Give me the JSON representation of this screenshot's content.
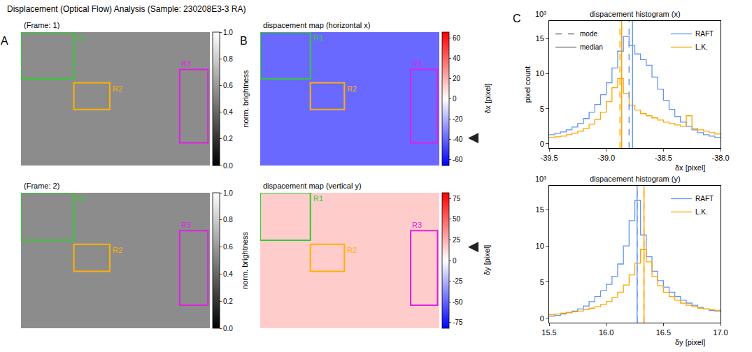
{
  "title": "Displacement (Optical Flow) Analysis (Sample: 230208E3-3 RA)",
  "chart_data": [
    {
      "type": "heatmap",
      "panel": "A",
      "title": "(Frame: 1)",
      "color": "gray",
      "cells": [
        [
          0.55
        ]
      ],
      "zlim": [
        0,
        1
      ],
      "zticks": [
        {
          "value": 0,
          "label": "0.0"
        },
        0.2,
        0.4,
        0.6,
        0.8,
        {
          "value": 1,
          "label": "1.0"
        }
      ],
      "colorbar_label": "norm. brightness",
      "tick_labels": false,
      "regions": [
        {
          "label": "R1",
          "color": "#33cc33",
          "x0": 0.0,
          "x1": 0.28,
          "y0": 0.0,
          "y1": 0.35
        },
        {
          "label": "R2",
          "color": "#ffb000",
          "x0": 0.28,
          "x1": 0.47,
          "y0": 0.38,
          "y1": 0.58
        },
        {
          "label": "R3",
          "color": "#e020e0",
          "x0": 0.84,
          "x1": 0.99,
          "y0": 0.28,
          "y1": 0.83
        }
      ]
    },
    {
      "type": "heatmap",
      "title": "(Frame: 2)",
      "color": "gray",
      "cells": [
        [
          0.55
        ]
      ],
      "zlim": [
        0,
        1
      ],
      "zticks": [
        {
          "value": 0,
          "label": "0.0"
        },
        0.2,
        0.4,
        0.6,
        0.8,
        {
          "value": 1,
          "label": "1.0"
        }
      ],
      "colorbar_label": "norm. brightness",
      "tick_labels": false,
      "regions": [
        {
          "label": "R1",
          "color": "#33cc33",
          "x0": 0.0,
          "x1": 0.28,
          "y0": 0.0,
          "y1": 0.35
        },
        {
          "label": "R2",
          "color": "#ffb000",
          "x0": 0.28,
          "x1": 0.47,
          "y0": 0.38,
          "y1": 0.58
        },
        {
          "label": "R3",
          "color": "#e020e0",
          "x0": 0.84,
          "x1": 0.99,
          "y0": 0.28,
          "y1": 0.83
        }
      ]
    },
    {
      "type": "heatmap",
      "panel": "B",
      "title": "dispacement map (horizontal x)",
      "color": "bwr",
      "cells": [
        [
          -38.8
        ]
      ],
      "zlim": [
        -66,
        66
      ],
      "zticks": [
        -60,
        -40,
        -20,
        0,
        20,
        40,
        60
      ],
      "colorbar_label": "δx [pixel]",
      "arrow_value": -38.8,
      "tick_labels": false,
      "regions": [
        {
          "label": "R1",
          "color": "#33cc33",
          "x0": 0.0,
          "x1": 0.28,
          "y0": 0.0,
          "y1": 0.35
        },
        {
          "label": "R2",
          "color": "#ffb000",
          "x0": 0.28,
          "x1": 0.47,
          "y0": 0.38,
          "y1": 0.58
        },
        {
          "label": "R3",
          "color": "#e020e0",
          "x0": 0.84,
          "x1": 0.99,
          "y0": 0.28,
          "y1": 0.83
        }
      ]
    },
    {
      "type": "heatmap",
      "title": "dispacement map (vertical y)",
      "color": "bwr",
      "cells": [
        [
          16.3
        ]
      ],
      "zlim": [
        -82,
        82
      ],
      "zticks": [
        -75,
        -50,
        -25,
        0,
        25,
        50,
        75
      ],
      "colorbar_label": "δy [pixel]",
      "arrow_value": 16.3,
      "tick_labels": false,
      "regions": [
        {
          "label": "R1",
          "color": "#33cc33",
          "x0": 0.0,
          "x1": 0.28,
          "y0": 0.0,
          "y1": 0.35
        },
        {
          "label": "R2",
          "color": "#ffb000",
          "x0": 0.28,
          "x1": 0.47,
          "y0": 0.38,
          "y1": 0.58
        },
        {
          "label": "R3",
          "color": "#e020e0",
          "x0": 0.84,
          "x1": 0.99,
          "y0": 0.28,
          "y1": 0.83
        }
      ]
    },
    {
      "type": "histogram",
      "panel": "C",
      "title": "dispacement histogram (x)",
      "x_label": "δx [pixel]",
      "y_label": "pixel count",
      "y_scale_label": "10³",
      "bins": [
        -39.5,
        -39.45,
        -39.4,
        -39.35,
        -39.3,
        -39.25,
        -39.2,
        -39.15,
        -39.1,
        -39.05,
        -39.0,
        -38.95,
        -38.9,
        -38.85,
        -38.8,
        -38.75,
        -38.7,
        -38.65,
        -38.6,
        -38.55,
        -38.5,
        -38.45,
        -38.4,
        -38.35,
        -38.3,
        -38.25,
        -38.2,
        -38.15,
        -38.1,
        -38.05,
        -38.0
      ],
      "series": [
        {
          "name": "RAFT",
          "color": "#6495ed",
          "mode": -38.8,
          "median": -38.77,
          "values": [
            1.3,
            1.5,
            1.7,
            2.0,
            2.4,
            2.9,
            3.6,
            4.5,
            5.6,
            7.0,
            8.7,
            10.8,
            13.2,
            15.3,
            14.0,
            12.8,
            12.0,
            11.2,
            9.5,
            7.8,
            6.2,
            4.9,
            3.9,
            3.1,
            2.5,
            2.0,
            1.6,
            1.3,
            1.1,
            0.9
          ]
        },
        {
          "name": "L.K.",
          "color": "#ffa500",
          "mode": -38.88,
          "median": -38.865,
          "values": [
            0.9,
            1.0,
            1.1,
            1.3,
            1.5,
            1.8,
            2.2,
            2.8,
            3.5,
            4.5,
            6.0,
            8.0,
            9.3,
            7.2,
            5.5,
            4.8,
            4.3,
            4.0,
            3.7,
            3.4,
            3.1,
            2.9,
            2.7,
            2.5,
            4.0,
            2.2,
            2.0,
            1.8,
            1.6,
            1.4
          ]
        }
      ],
      "reference_lines": [
        {
          "name": "mode",
          "color": "#777777",
          "line_style": "dash"
        },
        {
          "name": "median",
          "color": "#777777",
          "line_style": "solid"
        }
      ],
      "xlim": [
        -39.5,
        -38.0
      ],
      "xticks": [
        -39.5,
        {
          "value": -39.0,
          "label": "-39.0"
        },
        -38.5,
        {
          "value": -38.0,
          "label": "-38.0"
        }
      ],
      "ylim": [
        -0.6,
        17.5
      ],
      "yticks": [
        0,
        5,
        10,
        15
      ],
      "legend": "upper right",
      "grid": false
    },
    {
      "type": "histogram",
      "title": "dispacement histogram (y)",
      "x_label": "δy [pixel]",
      "y_scale_label": "10³",
      "bins": [
        15.5,
        15.55,
        15.6,
        15.65,
        15.7,
        15.75,
        15.8,
        15.85,
        15.9,
        15.95,
        16.0,
        16.05,
        16.1,
        16.15,
        16.2,
        16.25,
        16.3,
        16.35,
        16.4,
        16.45,
        16.5,
        16.55,
        16.6,
        16.65,
        16.7,
        16.75,
        16.8,
        16.85,
        16.9,
        16.95,
        17.0
      ],
      "series": [
        {
          "name": "RAFT",
          "color": "#6495ed",
          "mode": 16.27,
          "median": 16.27,
          "values": [
            0.3,
            0.4,
            0.6,
            0.8,
            1.0,
            1.3,
            1.7,
            2.3,
            3.0,
            3.8,
            4.7,
            5.8,
            7.5,
            10.0,
            13.5,
            16.3,
            11.5,
            8.5,
            6.5,
            5.2,
            4.3,
            3.6,
            3.0,
            2.5,
            2.1,
            1.8,
            1.5,
            1.3,
            1.1,
            1.0
          ]
        },
        {
          "name": "L.K.",
          "color": "#ffa500",
          "mode": 16.33,
          "median": 16.33,
          "values": [
            0.5,
            0.6,
            0.7,
            0.8,
            0.9,
            1.0,
            1.2,
            1.4,
            1.6,
            1.9,
            2.3,
            2.9,
            3.6,
            4.6,
            6.0,
            7.6,
            9.5,
            7.8,
            5.8,
            4.5,
            3.6,
            3.0,
            2.5,
            2.1,
            1.8,
            1.6,
            1.4,
            1.3,
            1.2,
            1.1
          ]
        }
      ],
      "xlim": [
        15.5,
        17.0
      ],
      "xticks": [
        15.5,
        {
          "value": 16.0,
          "label": "16.0"
        },
        16.5,
        {
          "value": 17.0,
          "label": "17.0"
        }
      ],
      "ylim": [
        -0.6,
        18.3
      ],
      "yticks": [
        0,
        5,
        10,
        15
      ],
      "legend": "upper right",
      "grid": false
    }
  ]
}
